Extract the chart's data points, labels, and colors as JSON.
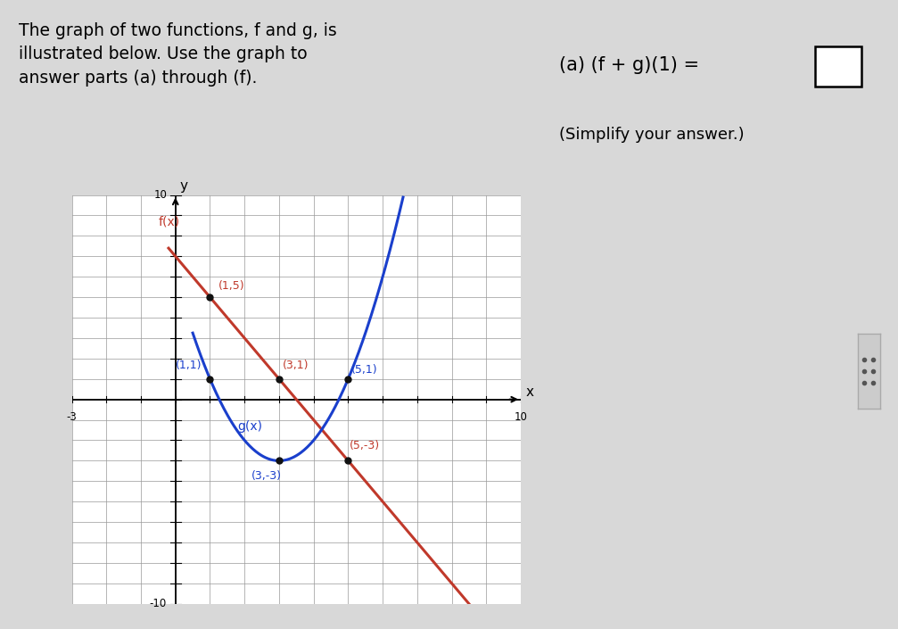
{
  "bg_color": "#d8d8d8",
  "plot_bg_color": "#ffffff",
  "f_color": "#c0392b",
  "g_color": "#1a3fcc",
  "xmin": -3,
  "xmax": 10,
  "ymin": -10,
  "ymax": 10,
  "grid_color": "#999999",
  "axis_color": "#000000",
  "title_left": "The graph of two functions, f and g, is\nillustrated below. Use the graph to\nanswer parts (a) through (f).",
  "title_right_1": "(a) (f + g)(1) =",
  "title_right_2": "(Simplify your answer.)",
  "f_label": "f(x)",
  "g_label": "g(x)",
  "divider_color": "#888888"
}
